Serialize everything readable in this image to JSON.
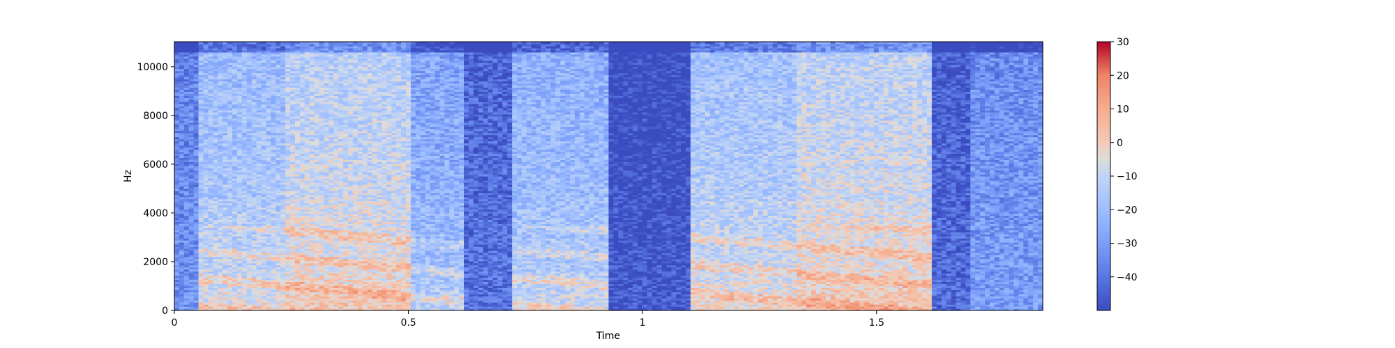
{
  "chart_data": {
    "type": "heatmap",
    "subtype": "spectrogram",
    "title": "",
    "xlabel": "Time",
    "ylabel": "Hz",
    "xlim": [
      0,
      1.855
    ],
    "ylim": [
      0,
      11025
    ],
    "x_ticks": [
      0,
      0.5,
      1,
      1.5
    ],
    "x_tick_labels": [
      "0",
      "0.5",
      "1",
      "1.5"
    ],
    "y_ticks": [
      0,
      2000,
      4000,
      6000,
      8000,
      10000
    ],
    "y_tick_labels": [
      "0",
      "2000",
      "4000",
      "6000",
      "8000",
      "10000"
    ],
    "colormap": "coolwarm",
    "colorbar": {
      "range": [
        -50,
        30
      ],
      "ticks": [
        -40,
        -30,
        -20,
        -10,
        0,
        10,
        20,
        30
      ],
      "tick_labels": [
        "−40",
        "−30",
        "−20",
        "−10",
        "0",
        "10",
        "20",
        "30"
      ]
    },
    "grid": false,
    "segments": [
      {
        "t_start": 0.0,
        "t_end": 0.05,
        "level": -33
      },
      {
        "t_start": 0.05,
        "t_end": 0.24,
        "level": -16
      },
      {
        "t_start": 0.24,
        "t_end": 0.5,
        "level": -9
      },
      {
        "t_start": 0.5,
        "t_end": 0.62,
        "level": -24
      },
      {
        "t_start": 0.62,
        "t_end": 0.72,
        "level": -40
      },
      {
        "t_start": 0.72,
        "t_end": 0.93,
        "level": -20
      },
      {
        "t_start": 0.93,
        "t_end": 1.1,
        "level": -47
      },
      {
        "t_start": 1.1,
        "t_end": 1.33,
        "level": -14
      },
      {
        "t_start": 1.33,
        "t_end": 1.62,
        "level": -8
      },
      {
        "t_start": 1.62,
        "t_end": 1.7,
        "level": -42
      },
      {
        "t_start": 1.7,
        "t_end": 1.855,
        "level": -30
      }
    ]
  }
}
